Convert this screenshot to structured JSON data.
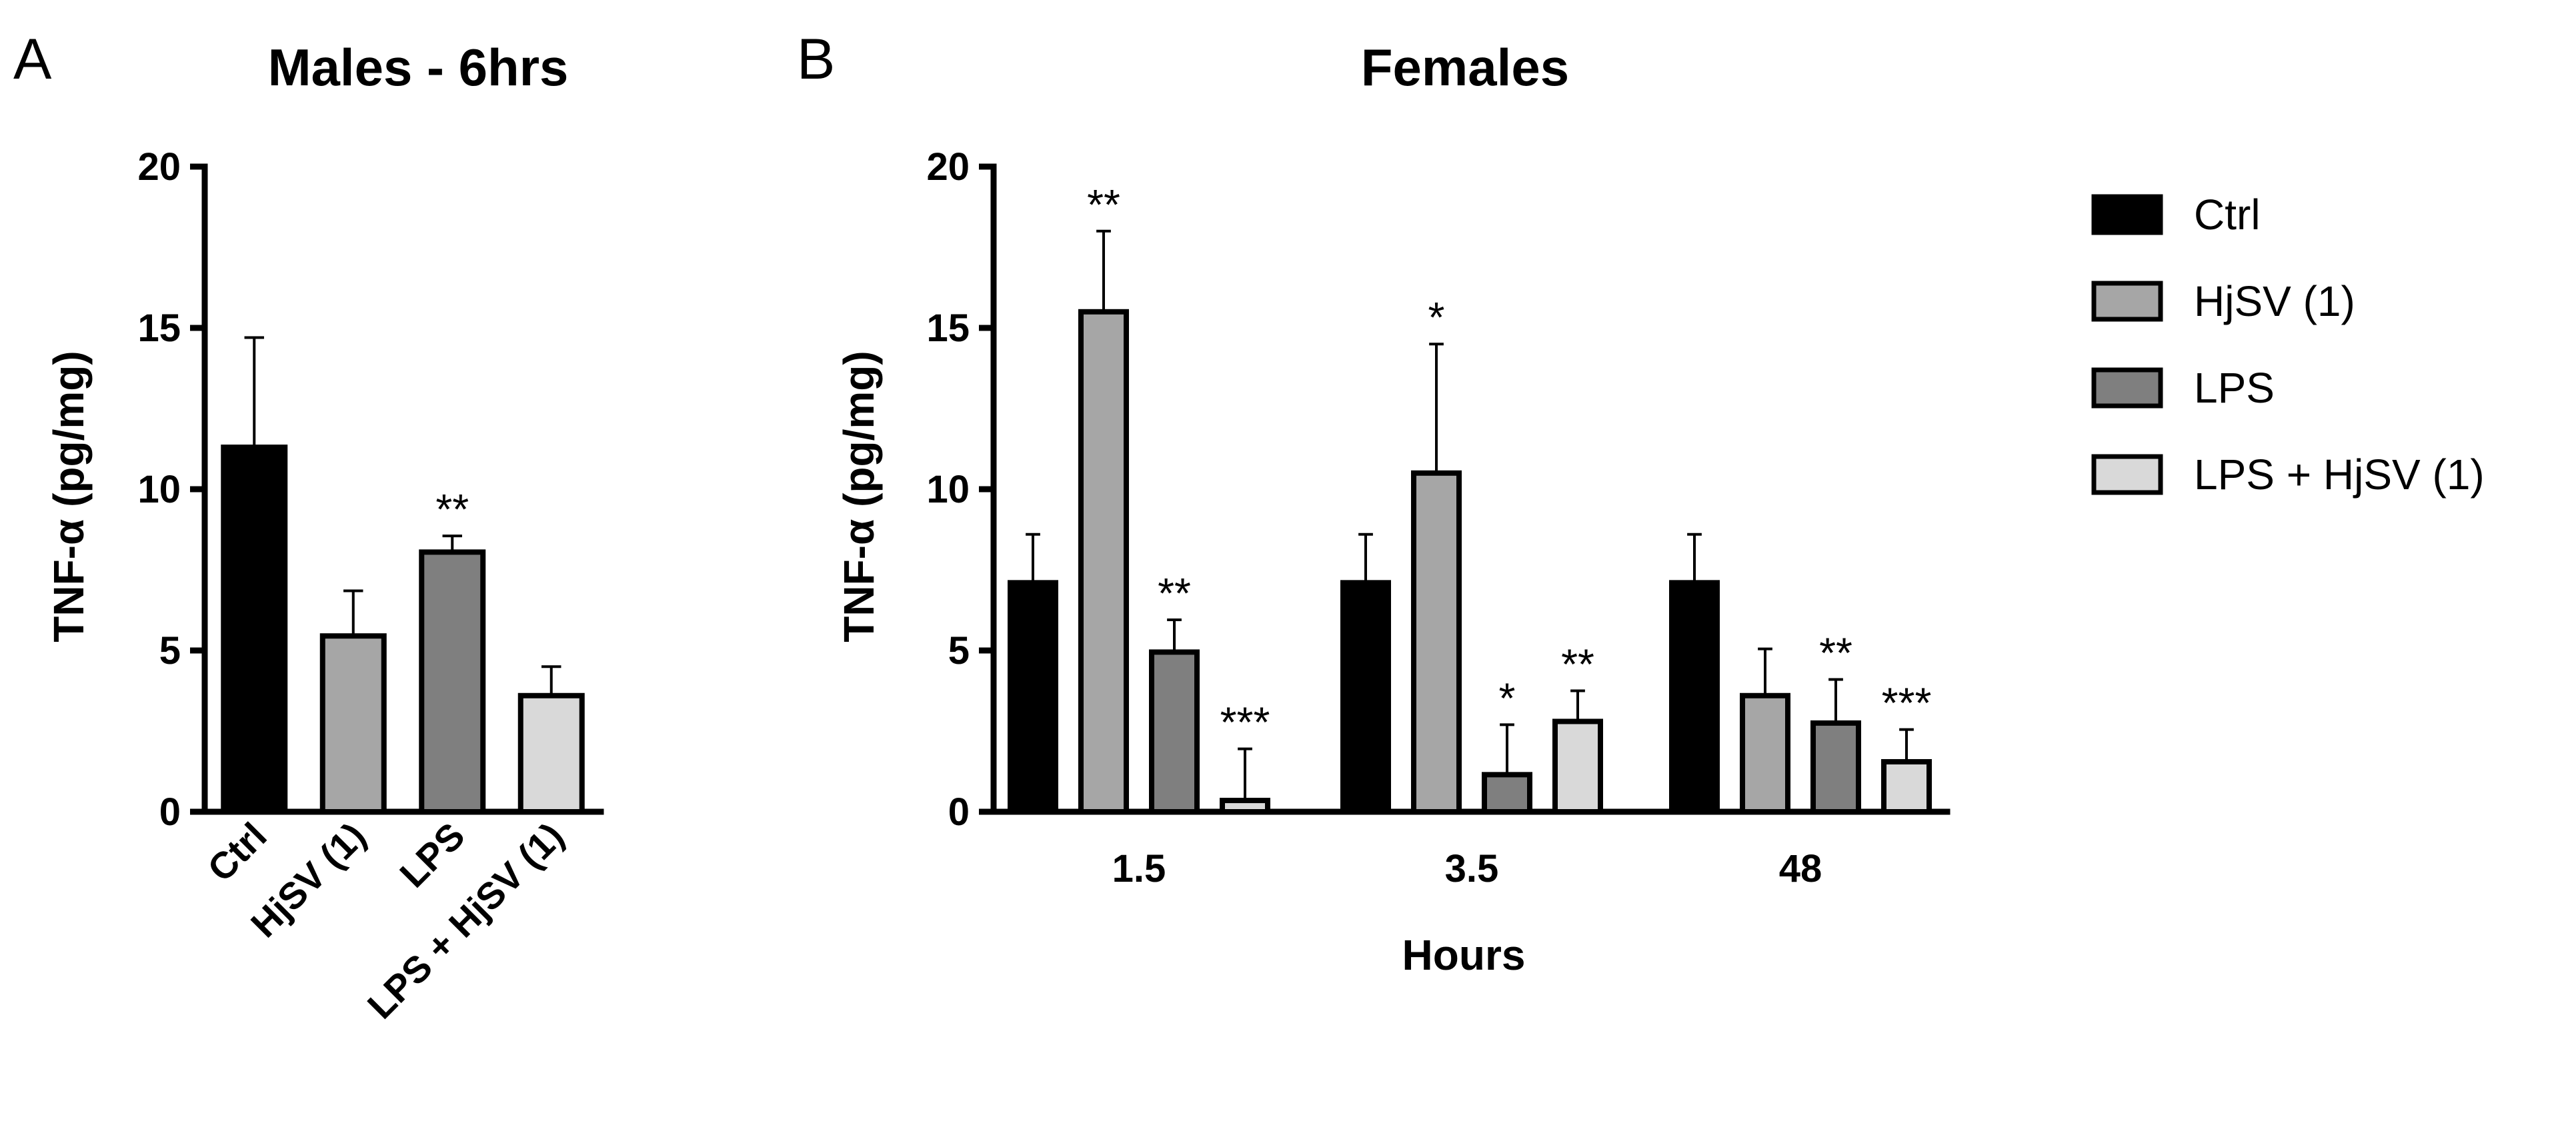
{
  "panel_a": {
    "letter": "A"
  },
  "panel_b": {
    "letter": "B"
  },
  "chart_data": [
    {
      "type": "bar",
      "title": "Males - 6hrs",
      "xlabel": "",
      "ylabel": "TNF-α (pg/mg)",
      "ylim": [
        0,
        20
      ],
      "yticks": [
        "0",
        "5",
        "10",
        "15",
        "20"
      ],
      "categories": [
        "Ctrl",
        "HjSV (1)",
        "LPS",
        "LPS + HjSV (1)"
      ],
      "values": [
        11.3,
        5.45,
        8.05,
        3.6
      ],
      "error": [
        3.4,
        1.4,
        0.5,
        0.9
      ],
      "significance": [
        "",
        "",
        "**",
        ""
      ],
      "colors": [
        "#000000",
        "#a6a6a6",
        "#7f7f7f",
        "#d9d9d9"
      ]
    },
    {
      "type": "bar",
      "title": "Females",
      "xlabel": "Hours",
      "ylabel": "TNF-α (pg/mg)",
      "ylim": [
        0,
        20
      ],
      "yticks": [
        "0",
        "5",
        "10",
        "15",
        "20"
      ],
      "categories": [
        "1.5",
        "3.5",
        "48"
      ],
      "series": [
        {
          "name": "Ctrl",
          "color": "#000000",
          "values": [
            7.1,
            7.1,
            7.1
          ],
          "error": [
            1.5,
            1.5,
            1.5
          ],
          "significance": [
            "",
            "",
            ""
          ]
        },
        {
          "name": "HjSV (1)",
          "color": "#a6a6a6",
          "values": [
            15.5,
            10.5,
            3.6
          ],
          "error": [
            2.5,
            4.0,
            1.45
          ],
          "significance": [
            "**",
            "*",
            ""
          ]
        },
        {
          "name": "LPS",
          "color": "#7f7f7f",
          "values": [
            4.95,
            1.15,
            2.75
          ],
          "error": [
            1.0,
            1.55,
            1.35
          ],
          "significance": [
            "**",
            "*",
            "**"
          ]
        },
        {
          "name": "LPS + HjSV (1)",
          "color": "#d9d9d9",
          "values": [
            0.35,
            2.8,
            1.55
          ],
          "error": [
            1.6,
            0.95,
            1.0
          ],
          "significance": [
            "***",
            "**",
            "***"
          ]
        }
      ],
      "legend_position": "right"
    }
  ]
}
